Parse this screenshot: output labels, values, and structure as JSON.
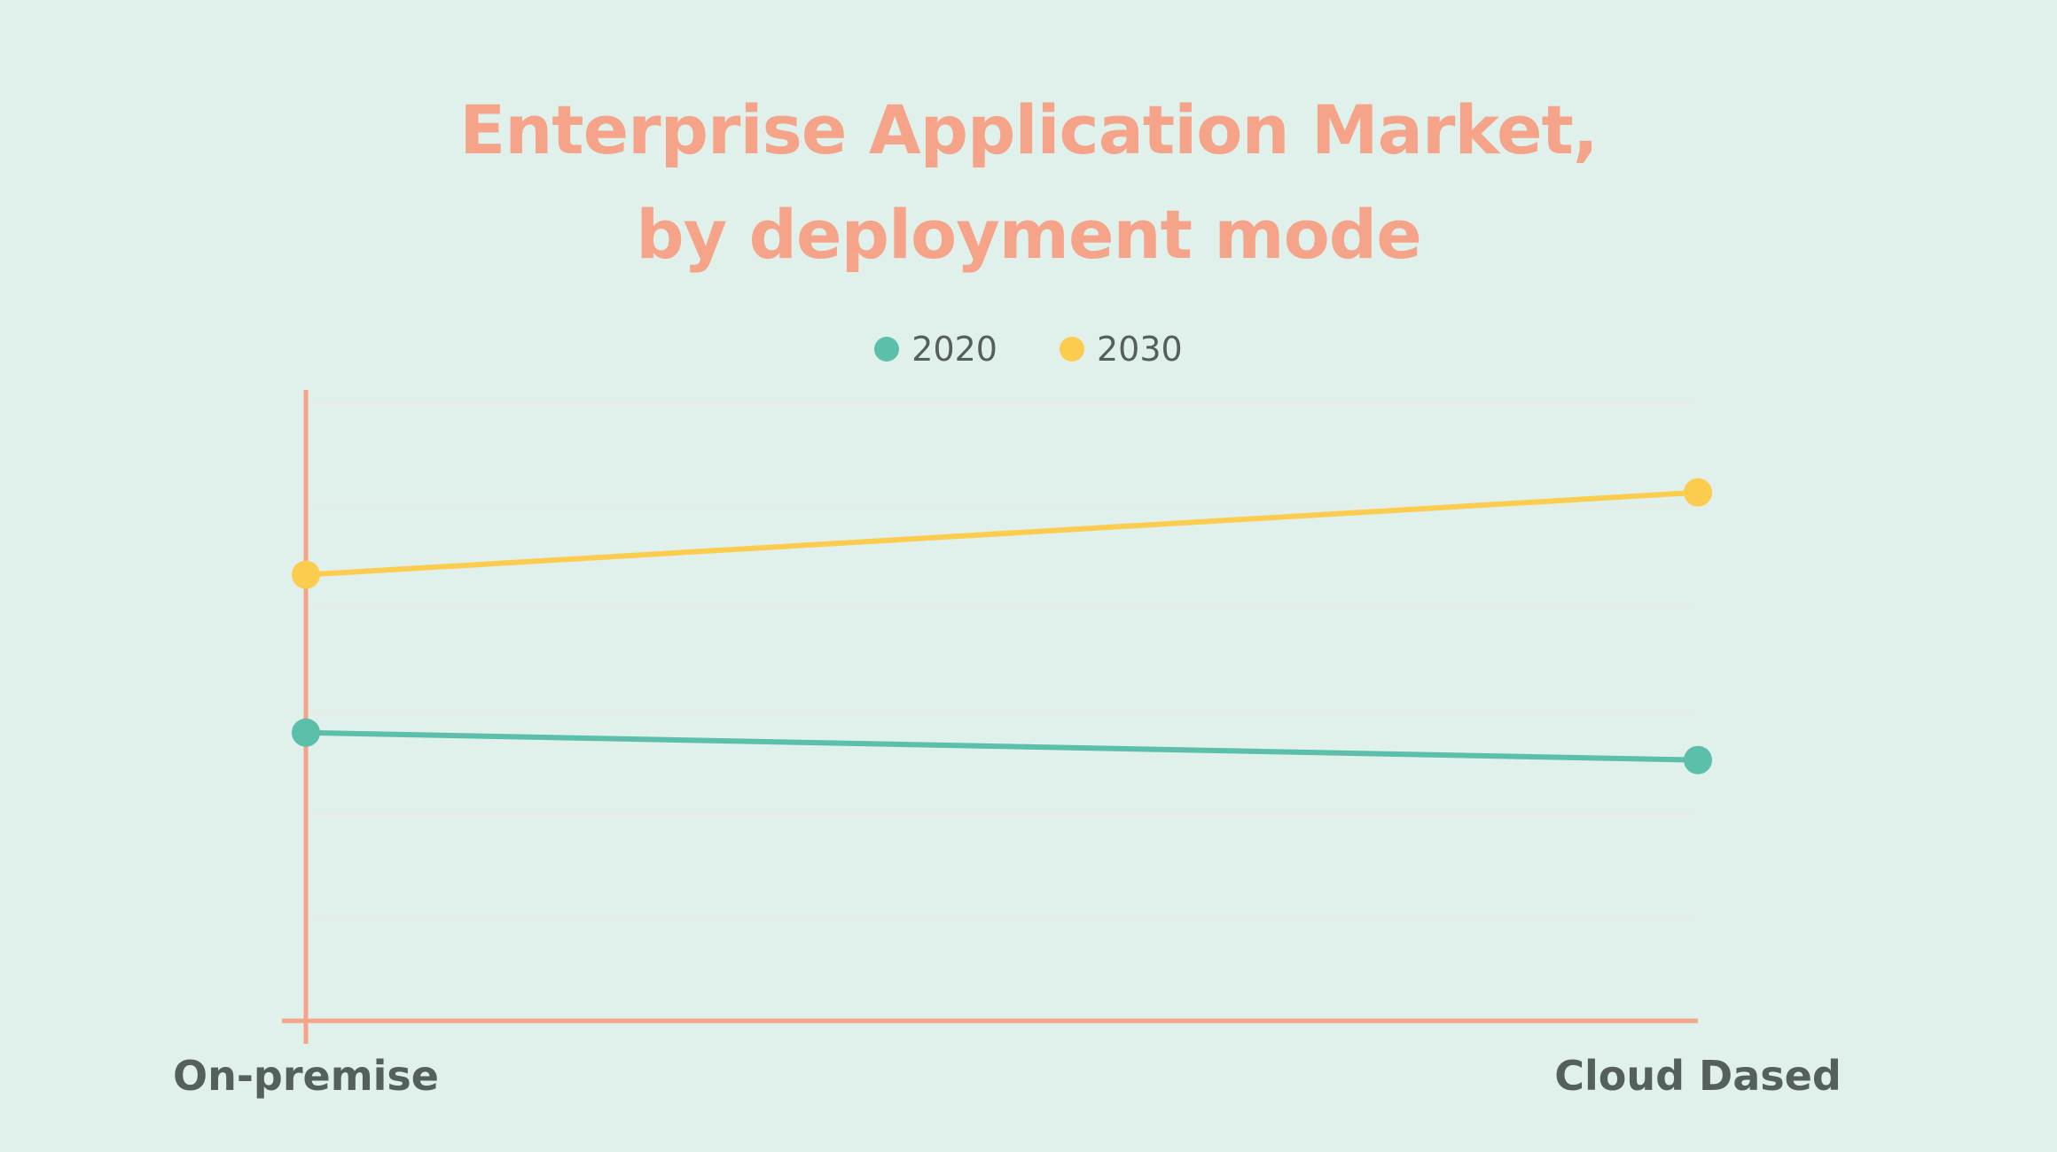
{
  "title_line1": "Enterprise Application Market,",
  "title_line2": "by deployment mode",
  "colors": {
    "background": "#e0f0eb",
    "title": "#f5a489",
    "axis": "#f5a489",
    "grid": "#e8ede3",
    "text": "#555f5c",
    "series_2020": "#5bbfa9",
    "series_2030": "#fccc4e"
  },
  "chart_data": {
    "type": "line",
    "title": "Enterprise Application Market, by deployment mode",
    "categories": [
      "On-premise",
      "Cloud Dased"
    ],
    "series": [
      {
        "name": "2020",
        "color": "#5bbfa9",
        "values": [
          42,
          38
        ]
      },
      {
        "name": "2030",
        "color": "#fccc4e",
        "values": [
          65,
          77
        ]
      }
    ],
    "ylim": [
      0,
      90
    ],
    "grid": true,
    "legend": "top-center",
    "xlabel": "",
    "ylabel": ""
  }
}
